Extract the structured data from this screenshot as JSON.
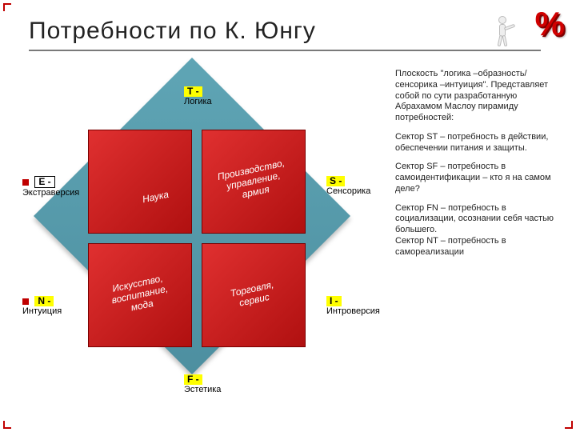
{
  "title": "Потребности по К. Юнгу",
  "diagram": {
    "colors": {
      "diamond_bg": "#4d8fa0",
      "quad_bg": "#c01818",
      "quad_text": "#ffffff",
      "axis_tag_bg": "#ffff00",
      "accent": "#c00000"
    },
    "axes": {
      "T": {
        "tag": "T -",
        "sub": "Логика"
      },
      "F": {
        "tag": "F -",
        "sub": "Эстетика"
      },
      "E": {
        "tag": "E -",
        "sub": "Экстраверсия"
      },
      "N": {
        "tag": "N -",
        "sub": "Интуиция"
      },
      "S": {
        "tag": "S -",
        "sub": "Сенсорика"
      },
      "I": {
        "tag": "I -",
        "sub": "Интроверсия"
      }
    },
    "quadrants": {
      "tr": "Производство,\nуправление,\nармия",
      "tl": "Наука",
      "bl": "Искусство,\nвоспитание,\nмода",
      "br": "Торговля,\nсервис"
    }
  },
  "right": {
    "p1": "Плоскость \"логика –образность/сенсорика –интуиция\". Представляет собой по сути разработанную Абрахамом Маслоу пирамиду потребностей:",
    "p2": "Сектор ST – потребность в действии, обеспечении питания и защиты.",
    "p3": "Сектор SF – потребность в самоидентификации – кто я на самом деле?",
    "p4": "Сектор FN – потребность в социализации, осознании себя частью большего.\nСектор NT – потребность в самореализации"
  },
  "decor": {
    "percent": "%"
  }
}
